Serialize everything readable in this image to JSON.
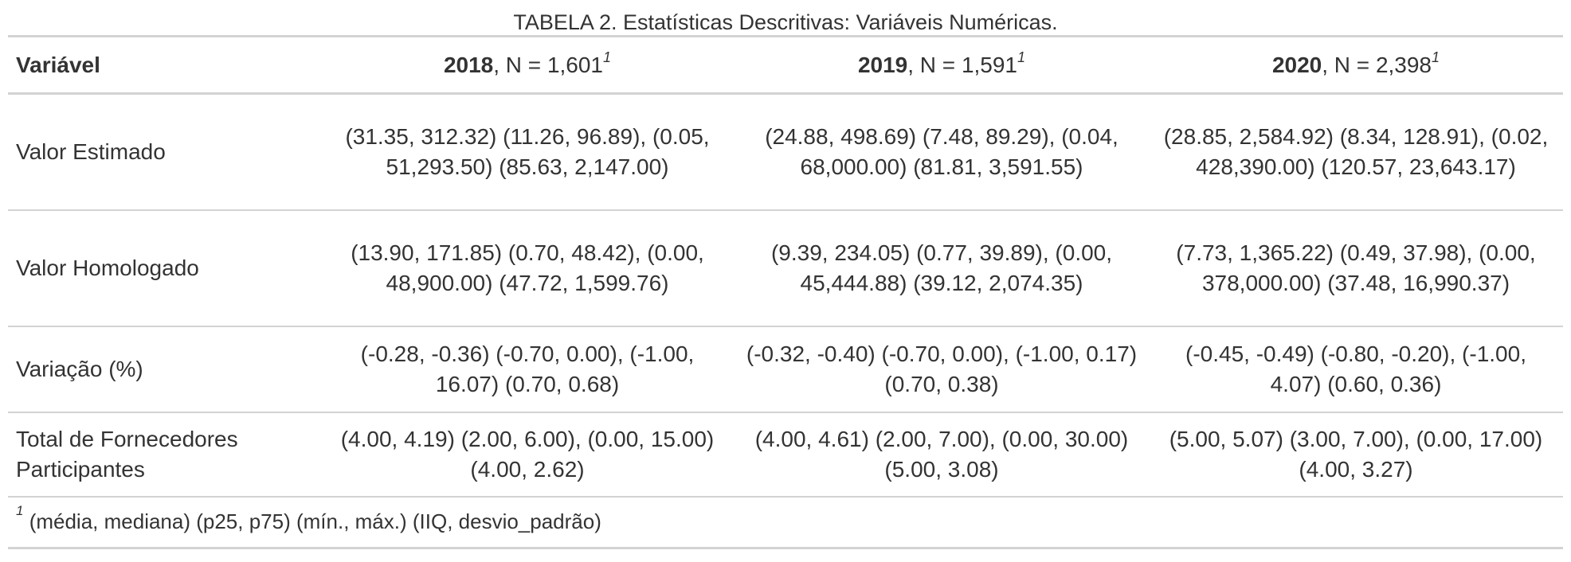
{
  "caption": "TABELA 2. Estatísticas Descritivas: Variáveis Numéricas.",
  "header": {
    "variable_label": "Variável",
    "columns": [
      {
        "year": "2018",
        "n_text": ", N = 1,601",
        "footnote_mark": "1"
      },
      {
        "year": "2019",
        "n_text": ", N = 1,591",
        "footnote_mark": "1"
      },
      {
        "year": "2020",
        "n_text": ", N = 2,398",
        "footnote_mark": "1"
      }
    ]
  },
  "rows": [
    {
      "label": "Valor Estimado",
      "cells": [
        "(31.35, 312.32) (11.26, 96.89), (0.05, 51,293.50) (85.63, 2,147.00)",
        "(24.88, 498.69) (7.48, 89.29), (0.04, 68,000.00) (81.81, 3,591.55)",
        "(28.85, 2,584.92) (8.34, 128.91), (0.02, 428,390.00) (120.57, 23,643.17)"
      ]
    },
    {
      "label": "Valor Homologado",
      "cells": [
        "(13.90, 171.85) (0.70, 48.42), (0.00, 48,900.00) (47.72, 1,599.76)",
        "(9.39, 234.05) (0.77, 39.89), (0.00, 45,444.88) (39.12, 2,074.35)",
        "(7.73, 1,365.22) (0.49, 37.98), (0.00, 378,000.00) (37.48, 16,990.37)"
      ]
    },
    {
      "label": "Variação (%)",
      "cells": [
        "(-0.28, -0.36) (-0.70, 0.00), (-1.00, 16.07) (0.70, 0.68)",
        "(-0.32, -0.40) (-0.70, 0.00), (-1.00, 0.17) (0.70, 0.38)",
        "(-0.45, -0.49) (-0.80, -0.20), (-1.00, 4.07) (0.60, 0.36)"
      ]
    },
    {
      "label": "Total de Fornecedores Participantes",
      "cells": [
        "(4.00, 4.19) (2.00, 6.00), (0.00, 15.00) (4.00, 2.62)",
        "(4.00, 4.61) (2.00, 7.00), (0.00, 30.00) (5.00, 3.08)",
        "(5.00, 5.07) (3.00, 7.00), (0.00, 17.00) (4.00, 3.27)"
      ]
    }
  ],
  "footnote": {
    "mark": "1",
    "text": " (média, mediana) (p25, p75) (mín., máx.) (IIQ, desvio_padrão)"
  }
}
